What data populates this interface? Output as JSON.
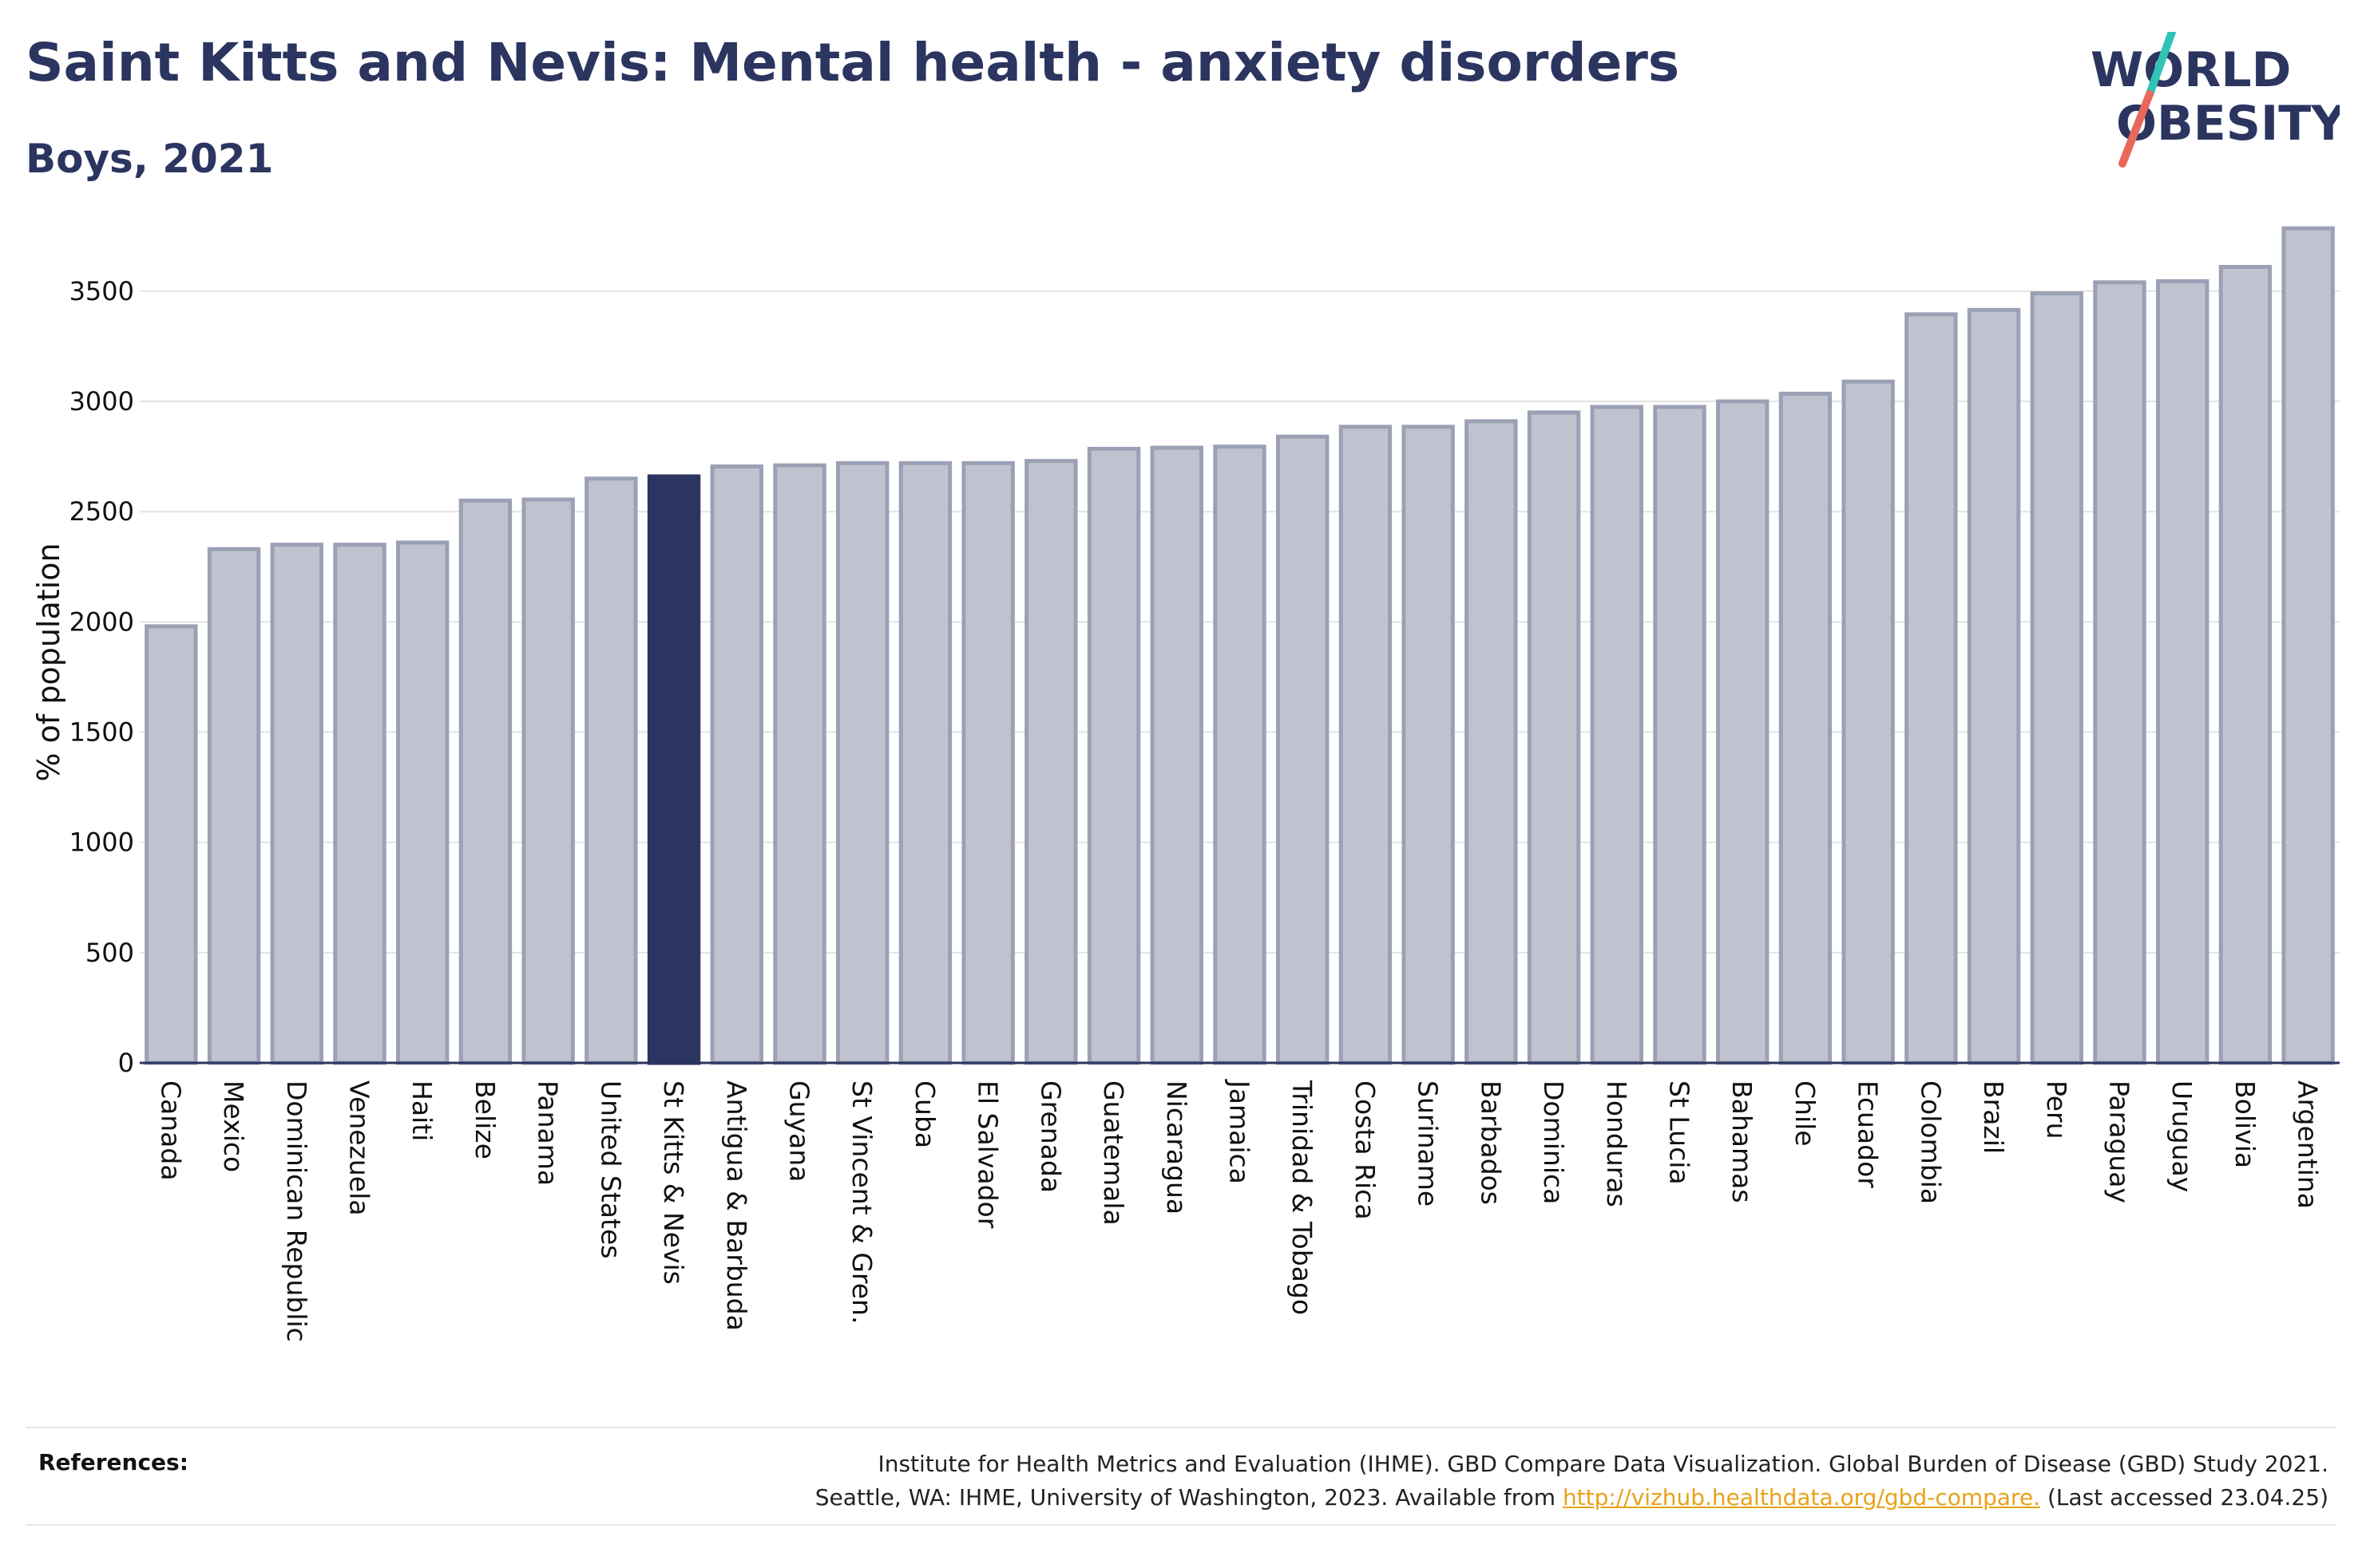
{
  "header": {
    "title": "Saint Kitts and Nevis: Mental health - anxiety disorders",
    "subtitle": "Boys, 2021"
  },
  "logo": {
    "line1": "WORLD",
    "line2": "OBESITY",
    "colors": {
      "navy": "#2b3560",
      "teal": "#2ec4b6",
      "coral": "#e8685a"
    }
  },
  "references": {
    "label": "References:",
    "line1": "Institute for Health Metrics and Evaluation (IHME). GBD Compare Data Visualization. Global Burden of Disease (GBD) Study 2021.",
    "line2_prefix": "Seattle, WA: IHME, University of Washington, 2023. Available from ",
    "link": "http://vizhub.healthdata.org/gbd-compare.",
    "line2_suffix": " (Last accessed 23.04.25)"
  },
  "chart_data": {
    "type": "bar",
    "ylabel": "% of population",
    "ylim": [
      0,
      3800
    ],
    "yticks": [
      0,
      500,
      1000,
      1500,
      2000,
      2500,
      3000,
      3500
    ],
    "grid": true,
    "highlight": "St Kitts & Nevis",
    "colors": {
      "bar": "#c0c3cf",
      "bar_border": "#9ba0b5",
      "highlight": "#2b3560"
    },
    "categories": [
      "Canada",
      "Mexico",
      "Dominican Republic",
      "Venezuela",
      "Haiti",
      "Belize",
      "Panama",
      "United States",
      "St Kitts & Nevis",
      "Antigua & Barbuda",
      "Guyana",
      "St Vincent & Gren.",
      "Cuba",
      "El Salvador",
      "Grenada",
      "Guatemala",
      "Nicaragua",
      "Jamaica",
      "Trinidad & Tobago",
      "Costa Rica",
      "Suriname",
      "Barbados",
      "Dominica",
      "Honduras",
      "St Lucia",
      "Bahamas",
      "Chile",
      "Ecuador",
      "Colombia",
      "Brazil",
      "Peru",
      "Paraguay",
      "Uruguay",
      "Bolivia",
      "Argentina"
    ],
    "values": [
      1980,
      2330,
      2350,
      2350,
      2360,
      2550,
      2555,
      2650,
      2660,
      2705,
      2710,
      2720,
      2720,
      2720,
      2730,
      2785,
      2790,
      2795,
      2840,
      2885,
      2885,
      2910,
      2950,
      2975,
      2975,
      3000,
      3035,
      3090,
      3395,
      3415,
      3490,
      3540,
      3545,
      3610,
      3785
    ]
  }
}
